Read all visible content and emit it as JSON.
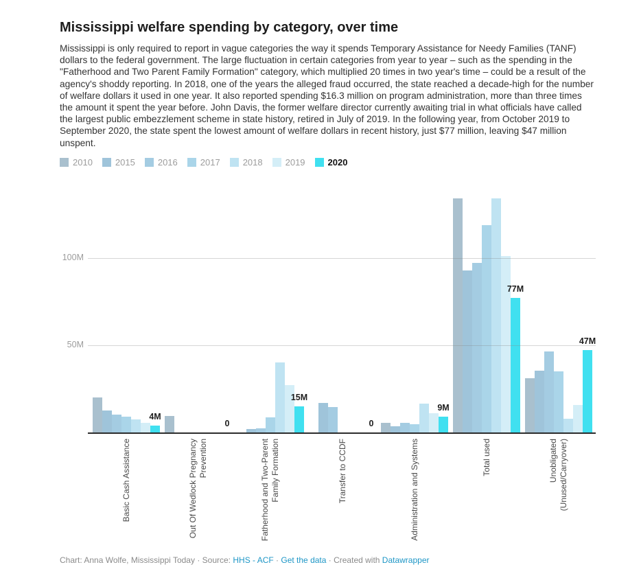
{
  "title": "Mississippi welfare spending by category, over time",
  "description": "Mississippi is only required to report in vague categories the way it spends Temporary Assistance for Needy Families (TANF) dollars to the federal government. The large fluctuation in certain categories from year to year – such as the spending in the \"Fatherhood and Two Parent Family Formation\" category, which multiplied 20 times in two year's time – could be a result of the agency's shoddy reporting. In 2018, one of the years the alleged fraud occurred, the state reached a decade-high for the number of welfare dollars it used in one year. It also reported spending $16.3 million on program administration, more than three times the amount it spent the year before. John Davis, the former welfare director currently awaiting trial in what officials have called the largest public embezzlement scheme in state history, retired in July of 2019. In the following year, from October 2019 to September 2020, the state spent the lowest amount of welfare dollars in recent history, just $77 million, leaving $47 million unspent.",
  "chart_data": {
    "type": "bar",
    "title": "Mississippi welfare spending by category, over time",
    "unit": "USD millions",
    "grid": true,
    "legend_position": "top",
    "ylim": [
      0,
      140
    ],
    "y_ticks": [
      {
        "value": 50,
        "label": "50M"
      },
      {
        "value": 100,
        "label": "100M"
      }
    ],
    "categories": [
      "Basic Cash Assistance",
      "Out Of Wedlock Pregnancy Prevention",
      "Fatherhood and Two-Parent Family Formation",
      "Transfer to CCDF",
      "Administration and Systems",
      "Total used",
      "Unobligated (Unused/Carryover)"
    ],
    "category_label_lines": [
      [
        "Basic Cash Assistance"
      ],
      [
        "Out Of Wedlock Pregnancy",
        "Prevention"
      ],
      [
        "Fatherhood and Two-Parent",
        "Family Formation"
      ],
      [
        "Transfer to CCDF"
      ],
      [
        "Administration and Systems"
      ],
      [
        "Total used"
      ],
      [
        "Unobligated",
        "(Unused/Carryover)"
      ]
    ],
    "series": [
      {
        "name": "2010",
        "color": "#a9c0ce",
        "values": [
          20,
          9.4,
          0,
          0,
          5.3,
          134,
          31
        ]
      },
      {
        "name": "2015",
        "color": "#9fc4da",
        "values": [
          12.5,
          0,
          2,
          17,
          3.5,
          93,
          35.5
        ]
      },
      {
        "name": "2016",
        "color": "#a4cce2",
        "values": [
          10,
          0,
          2.5,
          14.5,
          5.6,
          97,
          46.5
        ]
      },
      {
        "name": "2017",
        "color": "#aad5e9",
        "values": [
          9,
          0,
          8.7,
          0,
          4.8,
          119,
          35
        ]
      },
      {
        "name": "2018",
        "color": "#bfe3f2",
        "values": [
          7.5,
          0,
          40,
          0,
          16.3,
          134,
          8
        ]
      },
      {
        "name": "2019",
        "color": "#d4eef7",
        "values": [
          5.5,
          0,
          27,
          0,
          11,
          101,
          15.5
        ]
      },
      {
        "name": "2020",
        "color": "#40e0f0",
        "values": [
          4,
          0,
          15,
          0,
          9,
          77,
          47
        ]
      }
    ],
    "value_labels": {
      "series": "2020",
      "texts": [
        "4M",
        "0",
        "15M",
        "0",
        "9M",
        "77M",
        "47M"
      ]
    }
  },
  "footer": {
    "credit": "Chart: Anna Wolfe, Mississippi Today",
    "sep1": " · ",
    "source_label": "Source: ",
    "source_link": "HHS - ACF",
    "sep2": " · ",
    "data_link": "Get the data",
    "sep3": " · ",
    "created_label": "Created with ",
    "tool_link": "Datawrapper"
  },
  "colors": {
    "accent_2020": "#40e0f0",
    "link": "#1d96c6",
    "text_dark": "#1d1d1d",
    "text_body": "#333333",
    "text_muted": "#9c9c9c",
    "axis_label": "#494949",
    "baseline": "#2b2b2b"
  }
}
